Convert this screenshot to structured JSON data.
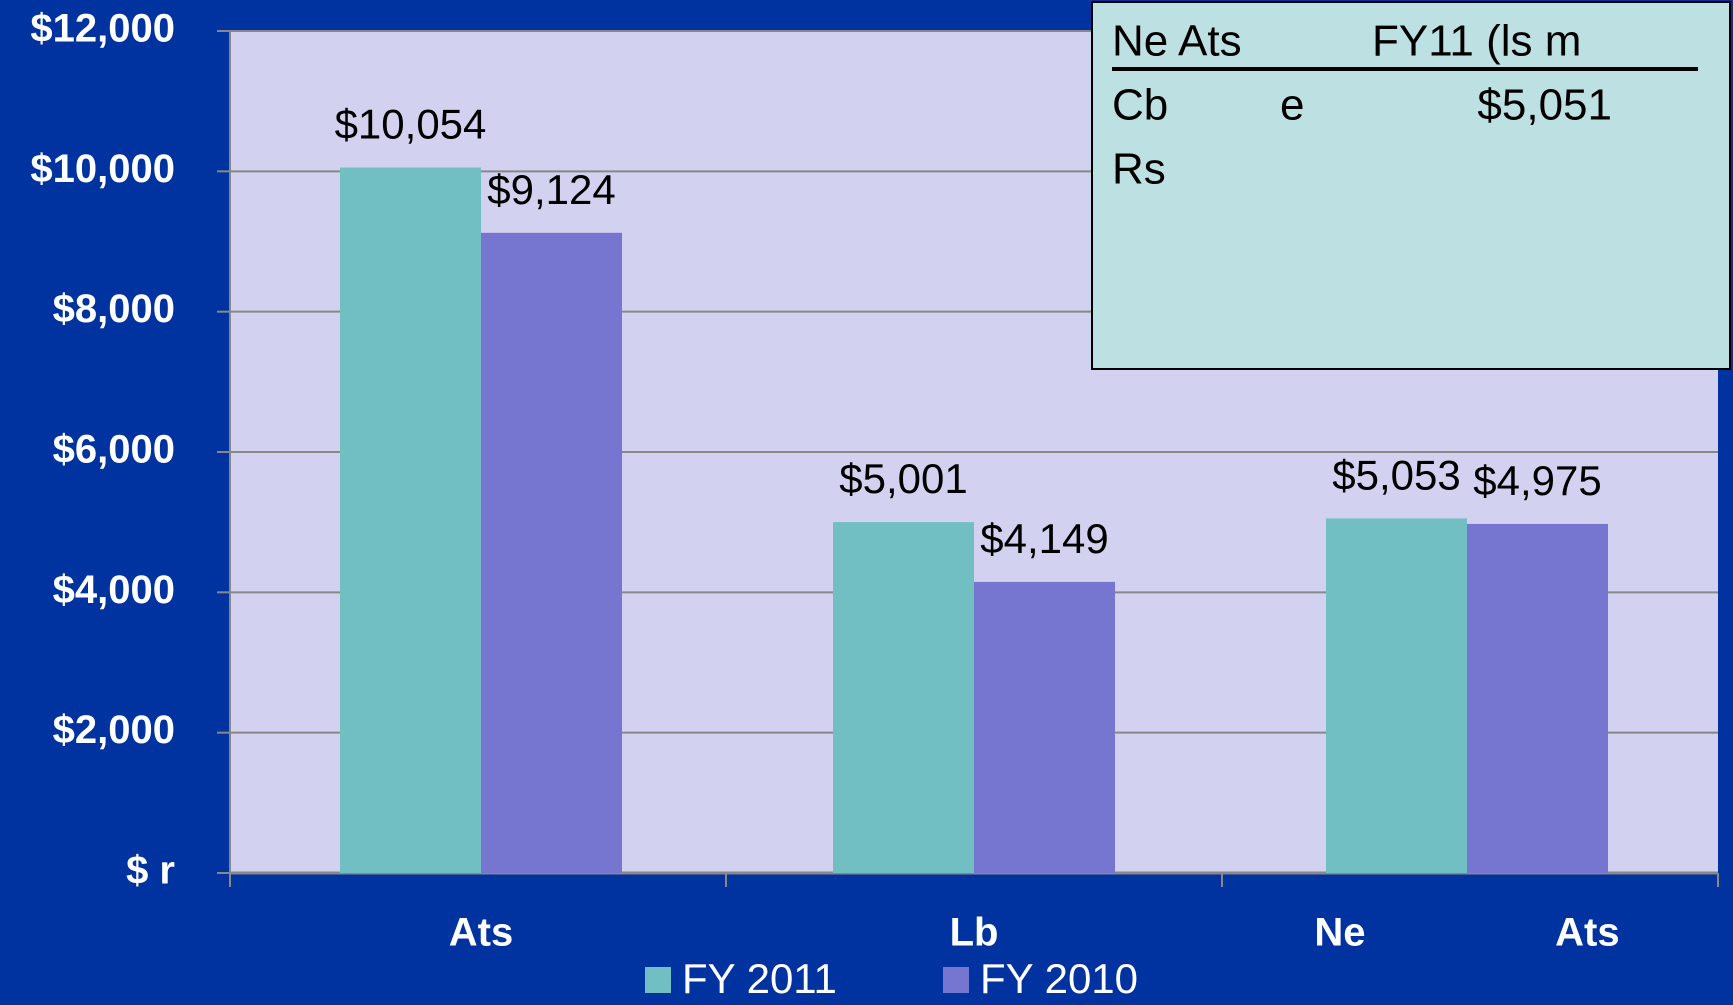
{
  "chart_data": {
    "type": "bar",
    "categories": [
      "Ats",
      "Lb",
      "Ne Ats"
    ],
    "series": [
      {
        "name": "FY 2011",
        "color": "#72bfc3",
        "values": [
          10054,
          5001,
          5053
        ],
        "value_labels": [
          "$10,054",
          "$5,001",
          "$5,053"
        ]
      },
      {
        "name": "FY 2010",
        "color": "#7676d0",
        "values": [
          9124,
          4149,
          4975
        ],
        "value_labels": [
          "$9,124",
          "$4,149",
          "$4,975"
        ]
      }
    ],
    "ylim": [
      0,
      12000
    ],
    "yticks": [
      {
        "value": 0,
        "label": "$ r"
      },
      {
        "value": 2000,
        "label": "$2,000"
      },
      {
        "value": 4000,
        "label": "$4,000"
      },
      {
        "value": 6000,
        "label": "$6,000"
      },
      {
        "value": 8000,
        "label": "$8,000"
      },
      {
        "value": 10000,
        "label": "$10,000"
      },
      {
        "value": 12000,
        "label": "$12,000"
      }
    ],
    "grid": true,
    "legend": "bottom"
  },
  "inset_table": {
    "header": [
      "Ne Ats",
      "FY11 (ls m"
    ],
    "rows": [
      [
        "Cb",
        "e",
        "$5,051"
      ],
      [
        "Rs"
      ]
    ]
  }
}
